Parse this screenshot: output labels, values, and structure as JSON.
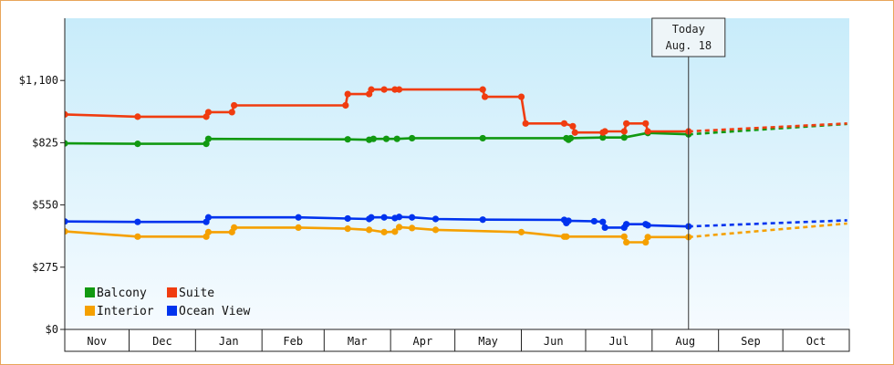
{
  "chart_data": {
    "type": "line",
    "title": "",
    "xlabel": "",
    "ylabel": "",
    "x_axis_type": "date",
    "xlim": [
      "2023-11-01",
      "2024-10-31"
    ],
    "ylim": [
      0,
      1375
    ],
    "y_ticks": [
      0,
      275,
      550,
      825,
      1100
    ],
    "y_tick_labels": [
      "$0",
      "$275",
      "$550",
      "$825",
      "$1,100"
    ],
    "month_labels": [
      "Nov",
      "Dec",
      "Jan",
      "Feb",
      "Mar",
      "Apr",
      "May",
      "Jun",
      "Jul",
      "Aug",
      "Sep",
      "Oct"
    ],
    "today_label_line1": "Today",
    "today_label_line2": "Aug. 18",
    "today_date": "2024-08-18",
    "legend_position": "bottom-left",
    "grid": false,
    "background_gradient": [
      "#c8ecfa",
      "#f6fbff"
    ],
    "series": [
      {
        "name": "Balcony",
        "color": "#119911",
        "points": [
          [
            "2023-11-01",
            822
          ],
          [
            "2023-12-05",
            820
          ],
          [
            "2024-01-06",
            820
          ],
          [
            "2024-01-07",
            842
          ],
          [
            "2024-03-12",
            840
          ],
          [
            "2024-03-22",
            838
          ],
          [
            "2024-03-24",
            842
          ],
          [
            "2024-03-30",
            842
          ],
          [
            "2024-04-04",
            842
          ],
          [
            "2024-04-11",
            845
          ],
          [
            "2024-05-14",
            845
          ],
          [
            "2024-06-22",
            845
          ],
          [
            "2024-06-23",
            838
          ],
          [
            "2024-06-24",
            845
          ],
          [
            "2024-07-09",
            848
          ],
          [
            "2024-07-19",
            848
          ],
          [
            "2024-07-30",
            868
          ],
          [
            "2024-08-18",
            862
          ]
        ],
        "projection": [
          [
            "2024-08-18",
            862
          ],
          [
            "2024-10-31",
            908
          ]
        ]
      },
      {
        "name": "Suite",
        "color": "#f03c10",
        "points": [
          [
            "2023-11-01",
            950
          ],
          [
            "2023-12-05",
            940
          ],
          [
            "2024-01-06",
            940
          ],
          [
            "2024-01-07",
            960
          ],
          [
            "2024-01-18",
            960
          ],
          [
            "2024-01-19",
            990
          ],
          [
            "2024-03-11",
            990
          ],
          [
            "2024-03-12",
            1040
          ],
          [
            "2024-03-22",
            1040
          ],
          [
            "2024-03-23",
            1060
          ],
          [
            "2024-03-29",
            1060
          ],
          [
            "2024-04-03",
            1060
          ],
          [
            "2024-04-05",
            1060
          ],
          [
            "2024-05-14",
            1060
          ],
          [
            "2024-05-15",
            1028
          ],
          [
            "2024-06-01",
            1028
          ],
          [
            "2024-06-03",
            910
          ],
          [
            "2024-06-21",
            910
          ],
          [
            "2024-06-25",
            898
          ],
          [
            "2024-06-26",
            870
          ],
          [
            "2024-07-09",
            870
          ],
          [
            "2024-07-10",
            875
          ],
          [
            "2024-07-19",
            875
          ],
          [
            "2024-07-20",
            910
          ],
          [
            "2024-07-29",
            910
          ],
          [
            "2024-07-30",
            875
          ],
          [
            "2024-08-18",
            875
          ]
        ],
        "projection": [
          [
            "2024-08-18",
            875
          ],
          [
            "2024-10-31",
            910
          ]
        ]
      },
      {
        "name": "Interior",
        "color": "#f5a000",
        "points": [
          [
            "2023-11-01",
            433
          ],
          [
            "2023-12-05",
            410
          ],
          [
            "2024-01-06",
            410
          ],
          [
            "2024-01-07",
            430
          ],
          [
            "2024-01-18",
            430
          ],
          [
            "2024-01-19",
            450
          ],
          [
            "2024-02-18",
            450
          ],
          [
            "2024-03-12",
            445
          ],
          [
            "2024-03-22",
            440
          ],
          [
            "2024-03-29",
            430
          ],
          [
            "2024-04-03",
            432
          ],
          [
            "2024-04-05",
            452
          ],
          [
            "2024-04-11",
            448
          ],
          [
            "2024-04-22",
            440
          ],
          [
            "2024-06-01",
            430
          ],
          [
            "2024-06-21",
            410
          ],
          [
            "2024-06-22",
            410
          ],
          [
            "2024-07-19",
            410
          ],
          [
            "2024-07-20",
            385
          ],
          [
            "2024-07-29",
            385
          ],
          [
            "2024-07-30",
            408
          ],
          [
            "2024-08-18",
            408
          ]
        ],
        "projection": [
          [
            "2024-08-18",
            408
          ],
          [
            "2024-10-31",
            468
          ]
        ]
      },
      {
        "name": "Ocean View",
        "color": "#0033ee",
        "points": [
          [
            "2023-11-01",
            477
          ],
          [
            "2023-12-05",
            475
          ],
          [
            "2024-01-06",
            475
          ],
          [
            "2024-01-07",
            495
          ],
          [
            "2024-02-18",
            495
          ],
          [
            "2024-03-12",
            490
          ],
          [
            "2024-03-22",
            488
          ],
          [
            "2024-03-23",
            495
          ],
          [
            "2024-03-29",
            495
          ],
          [
            "2024-04-03",
            492
          ],
          [
            "2024-04-05",
            497
          ],
          [
            "2024-04-11",
            495
          ],
          [
            "2024-04-22",
            488
          ],
          [
            "2024-05-14",
            485
          ],
          [
            "2024-06-21",
            484
          ],
          [
            "2024-06-22",
            470
          ],
          [
            "2024-06-23",
            480
          ],
          [
            "2024-07-05",
            478
          ],
          [
            "2024-07-09",
            475
          ],
          [
            "2024-07-10",
            450
          ],
          [
            "2024-07-19",
            450
          ],
          [
            "2024-07-20",
            465
          ],
          [
            "2024-07-29",
            465
          ],
          [
            "2024-07-30",
            460
          ],
          [
            "2024-08-18",
            455
          ]
        ],
        "projection": [
          [
            "2024-08-18",
            455
          ],
          [
            "2024-10-31",
            482
          ]
        ]
      }
    ]
  }
}
